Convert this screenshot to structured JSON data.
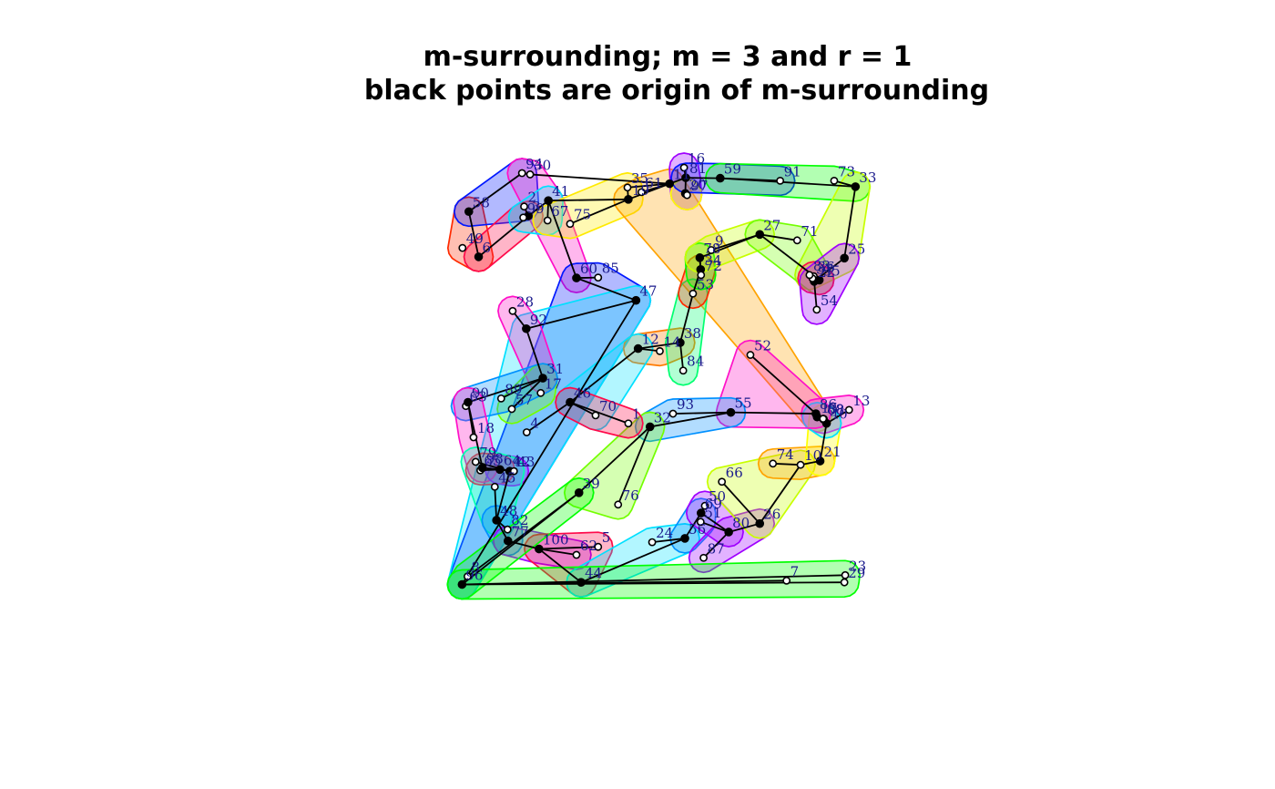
{
  "chart_data": {
    "type": "scatter",
    "title_lines": [
      "m-surrounding; m =  3 and r =  1",
      "black points are origin of m-surrounding"
    ],
    "xlabel": "",
    "ylabel": "",
    "xlim": [
      0,
      1
    ],
    "ylim": [
      0,
      1
    ],
    "axes_shown": false,
    "grid": false,
    "points": [
      {
        "id": 1,
        "x": 0.396,
        "y": 0.395,
        "origin": false
      },
      {
        "id": 2,
        "x": 0.151,
        "y": 0.908,
        "origin": false
      },
      {
        "id": 3,
        "x": 0.161,
        "y": 0.886,
        "origin": true
      },
      {
        "id": 4,
        "x": 0.157,
        "y": 0.374,
        "origin": false
      },
      {
        "id": 5,
        "x": 0.325,
        "y": 0.103,
        "origin": false
      },
      {
        "id": 6,
        "x": 0.044,
        "y": 0.789,
        "origin": true
      },
      {
        "id": 7,
        "x": 0.768,
        "y": 0.023,
        "origin": false
      },
      {
        "id": 8,
        "x": 0.018,
        "y": 0.033,
        "origin": false
      },
      {
        "id": 9,
        "x": 0.591,
        "y": 0.805,
        "origin": false
      },
      {
        "id": 10,
        "x": 0.801,
        "y": 0.297,
        "origin": false
      },
      {
        "id": 11,
        "x": 0.493,
        "y": 0.962,
        "origin": true
      },
      {
        "id": 12,
        "x": 0.419,
        "y": 0.572,
        "origin": true
      },
      {
        "id": 13,
        "x": 0.915,
        "y": 0.427,
        "origin": false
      },
      {
        "id": 14,
        "x": 0.47,
        "y": 0.566,
        "origin": false
      },
      {
        "id": 15,
        "x": 0.84,
        "y": 0.41,
        "origin": true
      },
      {
        "id": 16,
        "x": 0.527,
        "y": 1.0,
        "origin": false
      },
      {
        "id": 17,
        "x": 0.19,
        "y": 0.467,
        "origin": false
      },
      {
        "id": 18,
        "x": 0.032,
        "y": 0.362,
        "origin": false
      },
      {
        "id": 19,
        "x": 0.396,
        "y": 0.925,
        "origin": true
      },
      {
        "id": 20,
        "x": 0.53,
        "y": 0.939,
        "origin": true
      },
      {
        "id": 21,
        "x": 0.847,
        "y": 0.306,
        "origin": true
      },
      {
        "id": 22,
        "x": 0.833,
        "y": 0.731,
        "origin": true
      },
      {
        "id": 23,
        "x": 0.906,
        "y": 0.036,
        "origin": false
      },
      {
        "id": 24,
        "x": 0.452,
        "y": 0.114,
        "origin": false
      },
      {
        "id": 25,
        "x": 0.904,
        "y": 0.786,
        "origin": true
      },
      {
        "id": 26,
        "x": 0.705,
        "y": 0.158,
        "origin": true
      },
      {
        "id": 27,
        "x": 0.705,
        "y": 0.842,
        "origin": true
      },
      {
        "id": 28,
        "x": 0.124,
        "y": 0.661,
        "origin": false
      },
      {
        "id": 29,
        "x": 0.904,
        "y": 0.019,
        "origin": false
      },
      {
        "id": 30,
        "x": 0.165,
        "y": 0.984,
        "origin": false
      },
      {
        "id": 31,
        "x": 0.195,
        "y": 0.502,
        "origin": true
      },
      {
        "id": 32,
        "x": 0.447,
        "y": 0.387,
        "origin": true
      },
      {
        "id": 33,
        "x": 0.93,
        "y": 0.955,
        "origin": true
      },
      {
        "id": 34,
        "x": 0.566,
        "y": 0.759,
        "origin": true
      },
      {
        "id": 35,
        "x": 0.394,
        "y": 0.953,
        "origin": false
      },
      {
        "id": 36,
        "x": 0.832,
        "y": 0.743,
        "origin": false
      },
      {
        "id": 37,
        "x": 0.829,
        "y": 0.738,
        "origin": false
      },
      {
        "id": 38,
        "x": 0.518,
        "y": 0.586,
        "origin": true
      },
      {
        "id": 39,
        "x": 0.28,
        "y": 0.231,
        "origin": true
      },
      {
        "id": 40,
        "x": 0.862,
        "y": 0.395,
        "origin": true
      },
      {
        "id": 41,
        "x": 0.208,
        "y": 0.922,
        "origin": true
      },
      {
        "id": 42,
        "x": 0.117,
        "y": 0.282,
        "origin": true
      },
      {
        "id": 43,
        "x": 0.127,
        "y": 0.282,
        "origin": false
      },
      {
        "id": 44,
        "x": 0.285,
        "y": 0.019,
        "origin": true
      },
      {
        "id": 45,
        "x": 0.082,
        "y": 0.245,
        "origin": false
      },
      {
        "id": 46,
        "x": 0.259,
        "y": 0.445,
        "origin": true
      },
      {
        "id": 47,
        "x": 0.414,
        "y": 0.686,
        "origin": true
      },
      {
        "id": 48,
        "x": 0.086,
        "y": 0.166,
        "origin": true
      },
      {
        "id": 49,
        "x": 0.006,
        "y": 0.81,
        "origin": false
      },
      {
        "id": 50,
        "x": 0.576,
        "y": 0.2,
        "origin": false
      },
      {
        "id": 51,
        "x": 0.566,
        "y": 0.162,
        "origin": false
      },
      {
        "id": 52,
        "x": 0.683,
        "y": 0.557,
        "origin": false
      },
      {
        "id": 53,
        "x": 0.548,
        "y": 0.702,
        "origin": false
      },
      {
        "id": 54,
        "x": 0.839,
        "y": 0.664,
        "origin": false
      },
      {
        "id": 55,
        "x": 0.637,
        "y": 0.421,
        "origin": true
      },
      {
        "id": 56,
        "x": 0.529,
        "y": 0.123,
        "origin": true
      },
      {
        "id": 57,
        "x": 0.122,
        "y": 0.429,
        "origin": false
      },
      {
        "id": 58,
        "x": 0.021,
        "y": 0.896,
        "origin": true
      },
      {
        "id": 59,
        "x": 0.612,
        "y": 0.975,
        "origin": true
      },
      {
        "id": 60,
        "x": 0.274,
        "y": 0.739,
        "origin": true
      },
      {
        "id": 61,
        "x": 0.427,
        "y": 0.942,
        "origin": false
      },
      {
        "id": 62,
        "x": 0.274,
        "y": 0.084,
        "origin": false
      },
      {
        "id": 63,
        "x": 0.014,
        "y": 0.436,
        "origin": false
      },
      {
        "id": 64,
        "x": 0.094,
        "y": 0.286,
        "origin": true
      },
      {
        "id": 65,
        "x": 0.048,
        "y": 0.284,
        "origin": false
      },
      {
        "id": 66,
        "x": 0.616,
        "y": 0.257,
        "origin": false
      },
      {
        "id": 67,
        "x": 0.206,
        "y": 0.875,
        "origin": false
      },
      {
        "id": 68,
        "x": 0.855,
        "y": 0.405,
        "origin": true
      },
      {
        "id": 69,
        "x": 0.567,
        "y": 0.183,
        "origin": true
      },
      {
        "id": 70,
        "x": 0.319,
        "y": 0.414,
        "origin": false
      },
      {
        "id": 71,
        "x": 0.793,
        "y": 0.828,
        "origin": false
      },
      {
        "id": 72,
        "x": 0.567,
        "y": 0.746,
        "origin": false
      },
      {
        "id": 73,
        "x": 0.88,
        "y": 0.969,
        "origin": false
      },
      {
        "id": 74,
        "x": 0.736,
        "y": 0.3,
        "origin": false
      },
      {
        "id": 75,
        "x": 0.259,
        "y": 0.867,
        "origin": false
      },
      {
        "id": 76,
        "x": 0.372,
        "y": 0.203,
        "origin": false
      },
      {
        "id": 77,
        "x": 0.113,
        "y": 0.117,
        "origin": true
      },
      {
        "id": 78,
        "x": 0.564,
        "y": 0.787,
        "origin": true
      },
      {
        "id": 79,
        "x": 0.037,
        "y": 0.304,
        "origin": false
      },
      {
        "id": 80,
        "x": 0.632,
        "y": 0.138,
        "origin": true
      },
      {
        "id": 81,
        "x": 0.531,
        "y": 0.976,
        "origin": true
      },
      {
        "id": 82,
        "x": 0.112,
        "y": 0.144,
        "origin": false
      },
      {
        "id": 83,
        "x": 0.822,
        "y": 0.746,
        "origin": false
      },
      {
        "id": 84,
        "x": 0.525,
        "y": 0.52,
        "origin": false
      },
      {
        "id": 85,
        "x": 0.325,
        "y": 0.74,
        "origin": false
      },
      {
        "id": 86,
        "x": 0.837,
        "y": 0.418,
        "origin": true
      },
      {
        "id": 87,
        "x": 0.573,
        "y": 0.077,
        "origin": false
      },
      {
        "id": 88,
        "x": 0.854,
        "y": 0.406,
        "origin": false
      },
      {
        "id": 89,
        "x": 0.097,
        "y": 0.454,
        "origin": false
      },
      {
        "id": 90,
        "x": 0.019,
        "y": 0.445,
        "origin": true
      },
      {
        "id": 91,
        "x": 0.753,
        "y": 0.969,
        "origin": false
      },
      {
        "id": 92,
        "x": 0.156,
        "y": 0.619,
        "origin": true
      },
      {
        "id": 93,
        "x": 0.501,
        "y": 0.418,
        "origin": false
      },
      {
        "id": 94,
        "x": 0.146,
        "y": 0.987,
        "origin": false
      },
      {
        "id": 95,
        "x": 0.845,
        "y": 0.734,
        "origin": true
      },
      {
        "id": 96,
        "x": 0.005,
        "y": 0.014,
        "origin": true
      },
      {
        "id": 97,
        "x": 0.534,
        "y": 0.935,
        "origin": false
      },
      {
        "id": 98,
        "x": 0.053,
        "y": 0.29,
        "origin": true
      },
      {
        "id": 99,
        "x": 0.149,
        "y": 0.882,
        "origin": false
      },
      {
        "id": 100,
        "x": 0.186,
        "y": 0.098,
        "origin": true
      }
    ],
    "edges": [
      [
        58,
        6
      ],
      [
        58,
        94
      ],
      [
        94,
        30
      ],
      [
        3,
        6
      ],
      [
        3,
        2
      ],
      [
        3,
        99
      ],
      [
        3,
        41
      ],
      [
        41,
        67
      ],
      [
        41,
        19
      ],
      [
        41,
        60
      ],
      [
        60,
        85
      ],
      [
        60,
        47
      ],
      [
        47,
        96
      ],
      [
        92,
        47
      ],
      [
        92,
        28
      ],
      [
        92,
        31
      ],
      [
        31,
        89
      ],
      [
        31,
        57
      ],
      [
        31,
        90
      ],
      [
        90,
        63
      ],
      [
        90,
        18
      ],
      [
        90,
        98
      ],
      [
        98,
        64
      ],
      [
        64,
        65
      ],
      [
        64,
        43
      ],
      [
        64,
        42
      ],
      [
        42,
        79
      ],
      [
        42,
        48
      ],
      [
        48,
        45
      ],
      [
        48,
        82
      ],
      [
        48,
        77
      ],
      [
        77,
        100
      ],
      [
        100,
        62
      ],
      [
        100,
        5
      ],
      [
        100,
        44
      ],
      [
        44,
        56
      ],
      [
        56,
        24
      ],
      [
        56,
        69
      ],
      [
        69,
        50
      ],
      [
        69,
        80
      ],
      [
        80,
        51
      ],
      [
        80,
        87
      ],
      [
        80,
        26
      ],
      [
        26,
        66
      ],
      [
        26,
        10
      ],
      [
        10,
        74
      ],
      [
        10,
        21
      ],
      [
        21,
        40
      ],
      [
        40,
        13
      ],
      [
        40,
        68
      ],
      [
        68,
        88
      ],
      [
        68,
        15
      ],
      [
        15,
        86
      ],
      [
        86,
        55
      ],
      [
        86,
        52
      ],
      [
        55,
        93
      ],
      [
        55,
        32
      ],
      [
        32,
        39
      ],
      [
        32,
        76
      ],
      [
        39,
        8
      ],
      [
        39,
        96
      ],
      [
        96,
        7
      ],
      [
        96,
        29
      ],
      [
        96,
        23
      ],
      [
        12,
        46
      ],
      [
        12,
        14
      ],
      [
        12,
        38
      ],
      [
        46,
        1
      ],
      [
        46,
        70
      ],
      [
        46,
        4
      ],
      [
        38,
        84
      ],
      [
        38,
        53
      ],
      [
        53,
        34
      ],
      [
        34,
        78
      ],
      [
        78,
        72
      ],
      [
        78,
        27
      ],
      [
        27,
        9
      ],
      [
        27,
        71
      ],
      [
        27,
        95
      ],
      [
        95,
        83
      ],
      [
        95,
        36
      ],
      [
        95,
        22
      ],
      [
        22,
        37
      ],
      [
        22,
        54
      ],
      [
        22,
        25
      ],
      [
        25,
        33
      ],
      [
        33,
        59
      ],
      [
        33,
        73
      ],
      [
        59,
        91
      ],
      [
        59,
        81
      ],
      [
        81,
        16
      ],
      [
        81,
        20
      ],
      [
        81,
        11
      ],
      [
        20,
        97
      ],
      [
        11,
        19
      ],
      [
        11,
        35
      ],
      [
        11,
        61
      ],
      [
        19,
        75
      ],
      [
        19,
        35
      ],
      [
        11,
        30
      ]
    ],
    "regions": [
      {
        "color": "#ff2a00",
        "members": [
          58,
          6,
          49
        ]
      },
      {
        "color": "#0018ff",
        "members": [
          58,
          94,
          2
        ]
      },
      {
        "color": "#ff10c8",
        "members": [
          94,
          30,
          60,
          41
        ]
      },
      {
        "color": "#ff0a4a",
        "members": [
          3,
          6,
          99
        ]
      },
      {
        "color": "#00e0ff",
        "members": [
          41,
          99,
          67
        ]
      },
      {
        "color": "#ffea00",
        "members": [
          19,
          75,
          67,
          35
        ]
      },
      {
        "color": "#ffa300",
        "members": [
          11,
          15,
          19,
          61
        ]
      },
      {
        "color": "#a000ff",
        "members": [
          81,
          16,
          20,
          97
        ]
      },
      {
        "color": "#ffff00",
        "members": [
          20,
          97
        ]
      },
      {
        "color": "#0018ff",
        "members": [
          81,
          59,
          91
        ]
      },
      {
        "color": "#00ff00",
        "members": [
          59,
          33,
          73
        ]
      },
      {
        "color": "#c8ff00",
        "members": [
          33,
          25,
          83
        ]
      },
      {
        "color": "#0018ff",
        "members": [
          60,
          85,
          47,
          96
        ]
      },
      {
        "color": "#00e0ff",
        "members": [
          92,
          47,
          96
        ]
      },
      {
        "color": "#ff10c8",
        "members": [
          92,
          28,
          31
        ]
      },
      {
        "color": "#73ff00",
        "members": [
          31,
          57,
          17
        ]
      },
      {
        "color": "#0090ff",
        "members": [
          90,
          63,
          89,
          31
        ]
      },
      {
        "color": "#ff10c8",
        "members": [
          90,
          18,
          98
        ]
      },
      {
        "color": "#ff0a4a",
        "members": [
          98,
          64,
          65
        ]
      },
      {
        "color": "#a000ff",
        "members": [
          64,
          43,
          42
        ]
      },
      {
        "color": "#00ffb0",
        "members": [
          79,
          42,
          48,
          45
        ]
      },
      {
        "color": "#0090ff",
        "members": [
          48,
          82,
          77
        ]
      },
      {
        "color": "#a000ff",
        "members": [
          77,
          100,
          62
        ]
      },
      {
        "color": "#ff0a4a",
        "members": [
          100,
          5,
          44
        ]
      },
      {
        "color": "#00e0ff",
        "members": [
          44,
          24,
          56
        ]
      },
      {
        "color": "#0090ff",
        "members": [
          56,
          69,
          51
        ]
      },
      {
        "color": "#a000ff",
        "members": [
          69,
          50,
          80
        ]
      },
      {
        "color": "#a000ff",
        "members": [
          80,
          87,
          26
        ]
      },
      {
        "color": "#c8ff00",
        "members": [
          26,
          66,
          10
        ]
      },
      {
        "color": "#ffa300",
        "members": [
          10,
          74,
          21
        ]
      },
      {
        "color": "#ffff00",
        "members": [
          21,
          40,
          68
        ]
      },
      {
        "color": "#ff10c8",
        "members": [
          86,
          13,
          88,
          15
        ]
      },
      {
        "color": "#00e0ff",
        "members": [
          15,
          68,
          40
        ]
      },
      {
        "color": "#ff10c8",
        "members": [
          86,
          52,
          55
        ]
      },
      {
        "color": "#0090ff",
        "members": [
          55,
          93,
          32
        ]
      },
      {
        "color": "#73ff00",
        "members": [
          32,
          39,
          76
        ]
      },
      {
        "color": "#00ff00",
        "members": [
          39,
          8,
          96
        ]
      },
      {
        "color": "#00ff00",
        "members": [
          96,
          7,
          29,
          23
        ]
      },
      {
        "color": "#ff7a00",
        "members": [
          12,
          14,
          38
        ]
      },
      {
        "color": "#00e0ff",
        "members": [
          12,
          46,
          70
        ]
      },
      {
        "color": "#ff0a4a",
        "members": [
          46,
          1,
          70
        ]
      },
      {
        "color": "#00ff70",
        "members": [
          38,
          84,
          53
        ]
      },
      {
        "color": "#ff2a00",
        "members": [
          53,
          34
        ]
      },
      {
        "color": "#00ff00",
        "members": [
          34,
          78,
          72
        ]
      },
      {
        "color": "#c8ff00",
        "members": [
          78,
          27,
          9
        ]
      },
      {
        "color": "#73ff00",
        "members": [
          27,
          71,
          95
        ]
      },
      {
        "color": "#ff0a4a",
        "members": [
          95,
          36,
          37
        ]
      },
      {
        "color": "#a000ff",
        "members": [
          22,
          54,
          25
        ]
      }
    ]
  }
}
